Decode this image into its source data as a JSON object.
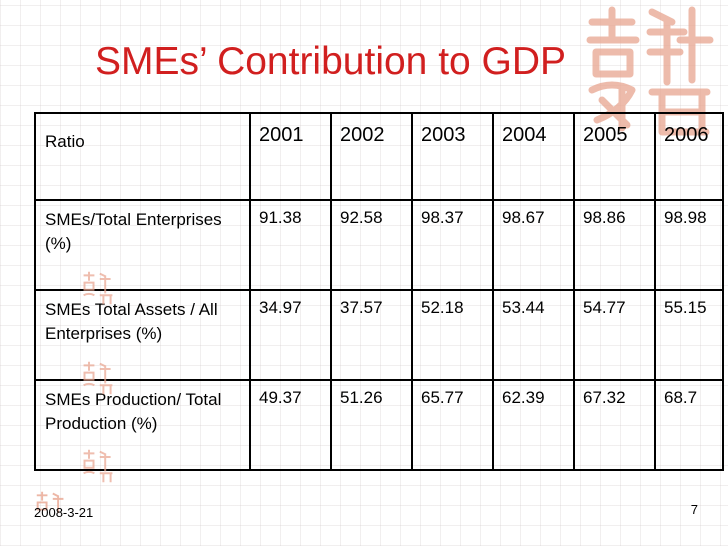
{
  "slide": {
    "title": "SMEs’ Contribution to GDP",
    "date": "2008-3-21",
    "page_number": "7"
  },
  "table": {
    "header": {
      "label": "Ratio",
      "years": [
        "2001",
        "2002",
        "2003",
        "2004",
        "2005",
        "2006"
      ]
    },
    "rows": [
      {
        "label": "SMEs/Total Enterprises (%)",
        "values": [
          "91.38",
          "92.58",
          "98.37",
          "98.67",
          "98.86",
          "98.98"
        ]
      },
      {
        "label": "SMEs Total Assets / All Enterprises (%)",
        "values": [
          "34.97",
          "37.57",
          "52.18",
          "53.44",
          "54.77",
          "55.15"
        ]
      },
      {
        "label": "SMEs Production/ Total Production (%)",
        "values": [
          "49.37",
          "51.26",
          "65.77",
          "62.39",
          "67.32",
          "68.7"
        ]
      }
    ]
  },
  "colors": {
    "title": "#d11f1f",
    "seal": "#e8a590"
  },
  "decorations": [
    "seal-logo-icon",
    "mini-seal-icon"
  ]
}
